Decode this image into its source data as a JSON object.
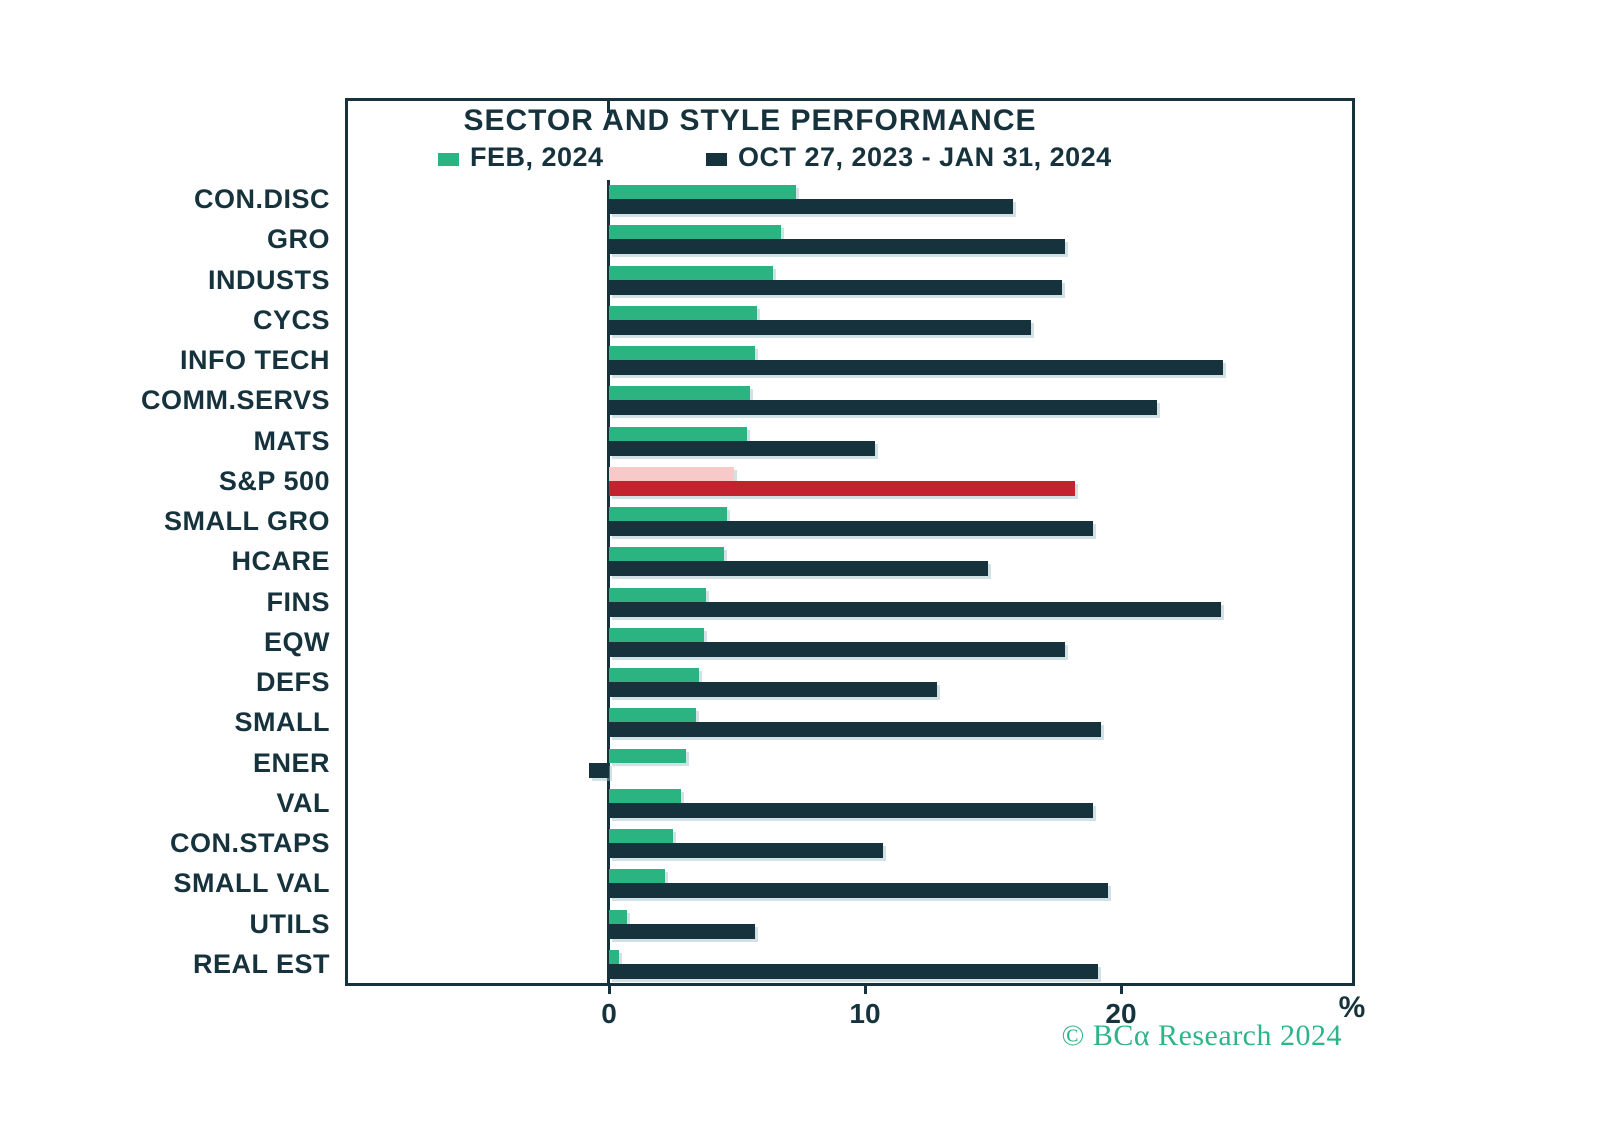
{
  "footer": {
    "text": "© BCα Research 2024"
  },
  "chart_data": {
    "type": "bar",
    "orientation": "horizontal",
    "title": "SECTOR AND STYLE PERFORMANCE",
    "xlabel": "%",
    "xticks": [
      0,
      10,
      20
    ],
    "xlim": [
      -10.3,
      29.2
    ],
    "grid": false,
    "legend_position": "top",
    "categories": [
      "CON.DISC",
      "GRO",
      "INDUSTS",
      "CYCS",
      "INFO TECH",
      "COMM.SERVS",
      "MATS",
      "S&P 500",
      "SMALL GRO",
      "HCARE",
      "FINS",
      "EQW",
      "DEFS",
      "SMALL",
      "ENER",
      "VAL",
      "CON.STAPS",
      "SMALL VAL",
      "UTILS",
      "REAL EST"
    ],
    "series": [
      {
        "name": "FEB, 2024",
        "color": "#2BB381",
        "values": [
          7.3,
          6.7,
          6.4,
          5.8,
          5.7,
          5.5,
          5.4,
          4.9,
          4.6,
          4.5,
          3.8,
          3.7,
          3.5,
          3.4,
          3.0,
          2.8,
          2.5,
          2.2,
          0.7,
          0.4
        ]
      },
      {
        "name": "OCT 27, 2023 - JAN 31, 2024",
        "color": "#16333D",
        "values": [
          15.8,
          17.8,
          17.7,
          16.5,
          24.0,
          21.4,
          10.4,
          18.2,
          18.9,
          14.8,
          23.9,
          17.8,
          12.8,
          19.2,
          -0.8,
          18.9,
          10.7,
          19.5,
          5.7,
          19.1
        ]
      }
    ],
    "highlight": {
      "category": "S&P 500",
      "feb_color": "#F8C9C9",
      "oct_color": "#C2232F"
    }
  }
}
